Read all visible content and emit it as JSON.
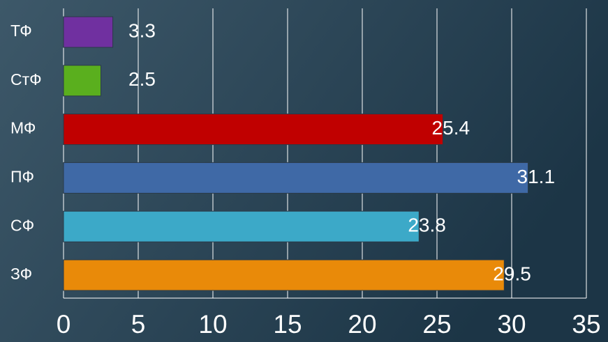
{
  "chart_data": {
    "type": "barh",
    "categories": [
      "ТФ",
      "СтФ",
      "МФ",
      "ПФ",
      "СФ",
      "ЗФ"
    ],
    "values": [
      3.3,
      2.5,
      25.4,
      31.1,
      23.8,
      29.5
    ],
    "colors": [
      "#7030a0",
      "#5aaf1e",
      "#c00000",
      "#3f69a6",
      "#3ca9c8",
      "#e98a09"
    ],
    "xlim": [
      0,
      35
    ],
    "xticks": [
      0,
      5,
      10,
      15,
      20,
      25,
      30,
      35
    ],
    "grid": true
  }
}
